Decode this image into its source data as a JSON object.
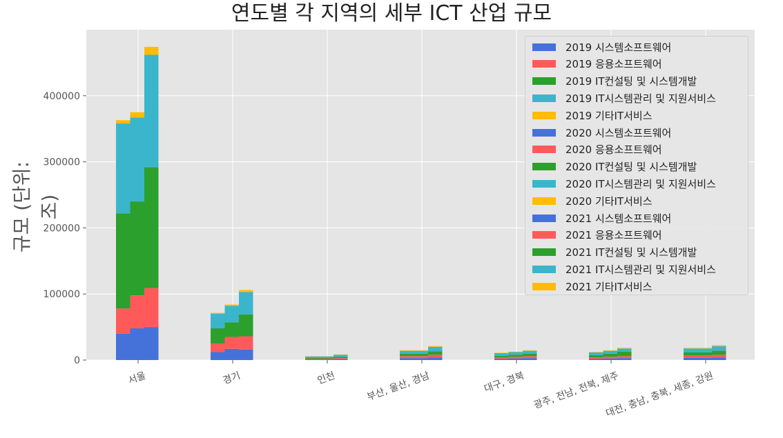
{
  "chart_data": {
    "type": "bar",
    "title": "연도별 각 지역의 세부 ICT 산업 규모",
    "xlabel": "",
    "ylabel": "규모 (단위:조)",
    "ylim": [
      0,
      500000
    ],
    "yticks": [
      0,
      100000,
      200000,
      300000,
      400000
    ],
    "grid": true,
    "legend_position": "top-right",
    "stacked": true,
    "categories": [
      "서울",
      "경기",
      "인천",
      "부산, 울산, 경남",
      "대구, 경북",
      "광주, 전남, 전북, 제주",
      "대전, 충남, 충북, 세종, 강원"
    ],
    "colors": [
      "#4472d8",
      "#ff5a5a",
      "#2ca02c",
      "#3bb5cc",
      "#ffbc00"
    ],
    "years": [
      {
        "year": "2019",
        "series": [
          {
            "name": "2019 시스템소프트웨어",
            "values": [
              40000,
              12000,
              1000,
              3000,
              2000,
              2000,
              3500
            ]
          },
          {
            "name": "2019 응용소프트웨어",
            "values": [
              38000,
              13000,
              1000,
              3000,
              2000,
              2000,
              3500
            ]
          },
          {
            "name": "2019 IT컨설팅 및 시스템개발",
            "values": [
              144000,
              23000,
              1500,
              3500,
              2500,
              3500,
              4500
            ]
          },
          {
            "name": "2019 IT시스템관리 및 지원서비스",
            "values": [
              136000,
              22000,
              2000,
              4500,
              4000,
              4000,
              6000
            ]
          },
          {
            "name": "2019 기타IT서비스",
            "values": [
              5000,
              1500,
              300,
              800,
              600,
              700,
              1000
            ]
          }
        ]
      },
      {
        "year": "2020",
        "series": [
          {
            "name": "2020 시스템소프트웨어",
            "values": [
              48000,
              17000,
              1000,
              3000,
              2500,
              2500,
              3500
            ]
          },
          {
            "name": "2020 응용소프트웨어",
            "values": [
              50000,
              18000,
              1000,
              3000,
              2500,
              2500,
              3500
            ]
          },
          {
            "name": "2020 IT컨설팅 및 시스템개발",
            "values": [
              142000,
              22000,
              1500,
              3500,
              3000,
              4500,
              4500
            ]
          },
          {
            "name": "2020 IT시스템관리 및 지원서비스",
            "values": [
              127000,
              25000,
              2000,
              4500,
              4000,
              4500,
              6000
            ]
          },
          {
            "name": "2020 기타IT서비스",
            "values": [
              8000,
              2000,
              300,
              800,
              600,
              800,
              1000
            ]
          }
        ]
      },
      {
        "year": "2021",
        "series": [
          {
            "name": "2021 시스템소프트웨어",
            "values": [
              50000,
              16000,
              1500,
              4000,
              3000,
              3000,
              4000
            ]
          },
          {
            "name": "2021 응용소프트웨어",
            "values": [
              59000,
              20000,
              1500,
              4000,
              3000,
              3000,
              4000
            ]
          },
          {
            "name": "2021 IT컨설팅 및 시스템개발",
            "values": [
              183000,
              33000,
              2000,
              5000,
              3500,
              6500,
              6000
            ]
          },
          {
            "name": "2021 IT시스템관리 및 지원서비스",
            "values": [
              170000,
              34000,
              3000,
              7000,
              4500,
              5000,
              7000
            ]
          },
          {
            "name": "2021 기타IT서비스",
            "values": [
              12000,
              3000,
              500,
              1200,
              800,
              1000,
              1500
            ]
          }
        ]
      }
    ]
  }
}
